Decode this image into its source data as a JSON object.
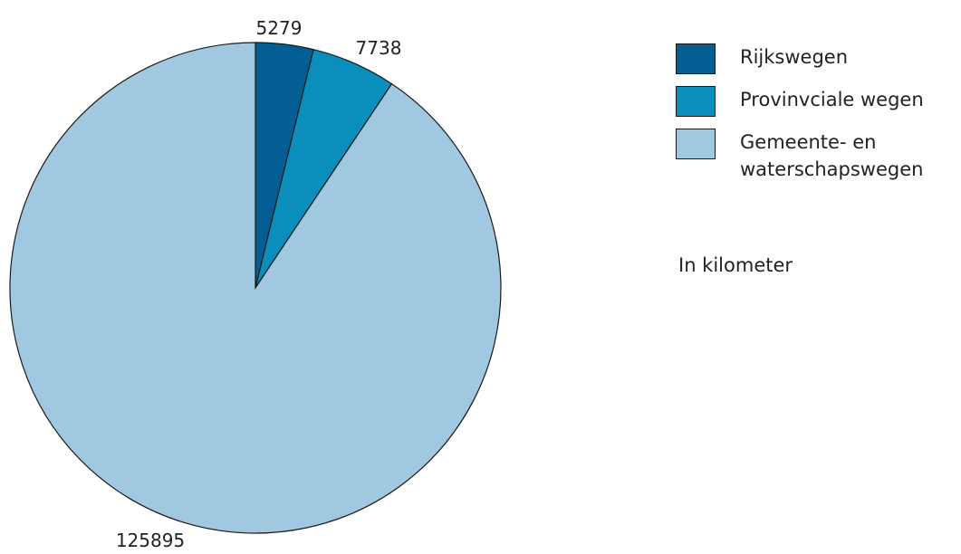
{
  "chart_data": {
    "type": "pie",
    "title": "",
    "slices": [
      {
        "label": "Rijkswegen",
        "value": 5279,
        "value_label": "5279",
        "color": "#035f93"
      },
      {
        "label": "Provinvciale wegen",
        "value": 7738,
        "value_label": "7738",
        "color": "#0a8fbd"
      },
      {
        "label": "Gemeente- en waterschapswegen",
        "value": 125895,
        "value_label": "125895",
        "color": "#a0c9e1"
      }
    ],
    "legend_placement": "right",
    "note": "In kilometer"
  }
}
